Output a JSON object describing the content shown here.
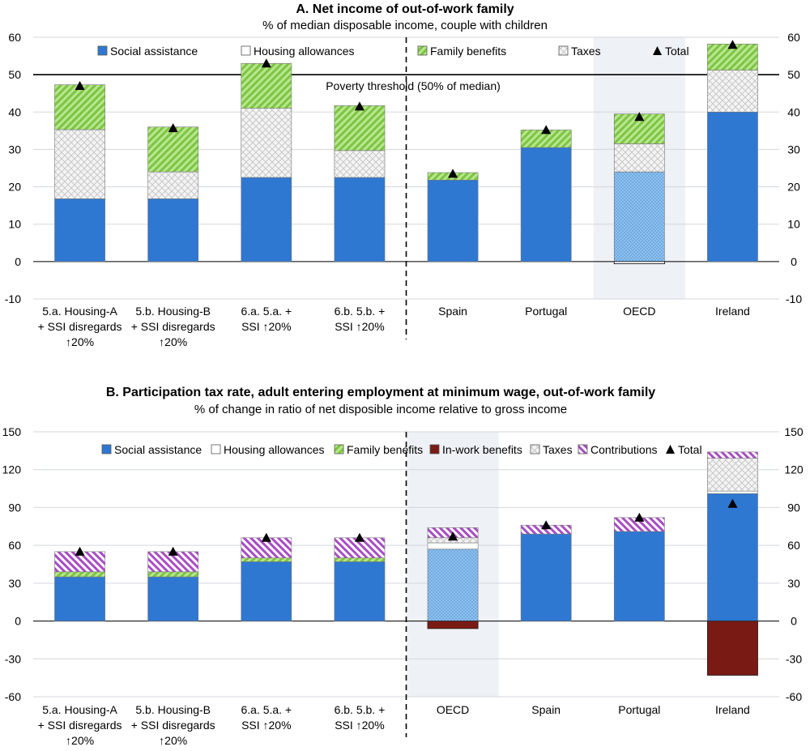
{
  "colors": {
    "social_assistance": "#2e78d2",
    "housing_allowances": "#ffffff",
    "family_benefits": "#90d45a",
    "in_work_benefits": "#7a1a14",
    "taxes": "#dcdcdc",
    "contributions": "#a84cc4",
    "total_marker": "#000000",
    "highlight_band": "#eef1f5"
  },
  "chart_data": [
    {
      "type": "bar",
      "stacked": true,
      "title": "A. Net income of out-of-work family",
      "subtitle": "% of median disposable income, couple with children",
      "categories": [
        "5.a. Housing-A + SSI disregards ↑20%",
        "5.b. Housing-B + SSI disregards ↑20%",
        "6.a. 5.a. + SSI ↑20%",
        "6.b. 5.b. + SSI ↑20%",
        "Spain",
        "Portugal",
        "OECD",
        "Ireland"
      ],
      "category_lines": [
        [
          "5.a. Housing-A",
          "+ SSI disregards",
          "↑20%"
        ],
        [
          "5.b. Housing-B",
          "+ SSI disregards",
          "↑20%"
        ],
        [
          "6.a. 5.a. +",
          "SSI ↑20%"
        ],
        [
          "6.b. 5.b. +",
          "SSI ↑20%"
        ],
        [
          "Spain"
        ],
        [
          "Portugal"
        ],
        [
          "OECD"
        ],
        [
          "Ireland"
        ]
      ],
      "series": [
        {
          "name": "Social assistance",
          "key": "social_assistance",
          "values": [
            16.8,
            16.8,
            22.5,
            22.5,
            21.8,
            30.5,
            24.0,
            40.0
          ]
        },
        {
          "name": "Housing allowances",
          "key": "housing_allowances",
          "values": [
            0,
            0,
            0,
            0,
            0,
            0,
            0,
            0
          ]
        },
        {
          "name": "Family benefits",
          "key": "family_benefits",
          "values": [
            12.0,
            12.0,
            12.0,
            12.0,
            2.0,
            4.7,
            8.0,
            7.0
          ]
        },
        {
          "name": "Taxes",
          "key": "taxes",
          "values": [
            18.5,
            7.2,
            18.5,
            7.2,
            0,
            0,
            7.5,
            11.2
          ]
        }
      ],
      "series_order": [
        "social_assistance",
        "housing_allowances",
        "taxes",
        "family_benefits"
      ],
      "negative": {
        "OECD": -0.6
      },
      "total": {
        "name": "Total",
        "values": [
          47.0,
          35.7,
          53.0,
          41.5,
          23.5,
          35.2,
          38.7,
          58.0
        ]
      },
      "legend_order": [
        "Social assistance",
        "Housing allowances",
        "Family benefits",
        "Taxes",
        "Total"
      ],
      "reference_line": {
        "value": 50,
        "label": "Poverty threshold (50% of median)"
      },
      "highlight_category": "OECD",
      "ylim": [
        -10,
        60
      ],
      "yticks": [
        -10,
        0,
        10,
        20,
        30,
        40,
        50,
        60
      ],
      "legend_placement": "top",
      "divider_after_index": 3
    },
    {
      "type": "bar",
      "stacked": true,
      "title": "B. Participation tax rate, adult entering employment at minimum wage, out-of-work family",
      "subtitle": "% of change in ratio of net disposible income relative to gross income",
      "categories": [
        "5.a. Housing-A + SSI disregards ↑20%",
        "5.b. Housing-B + SSI disregards ↑20%",
        "6.a. 5.a. + SSI ↑20%",
        "6.b. 5.b. + SSI ↑20%",
        "OECD",
        "Spain",
        "Portugal",
        "Ireland"
      ],
      "category_lines": [
        [
          "5.a. Housing-A",
          "+ SSI disregards",
          "↑20%"
        ],
        [
          "5.b. Housing-B",
          "+ SSI disregards",
          "↑20%"
        ],
        [
          "6.a. 5.a. +",
          "SSI ↑20%"
        ],
        [
          "6.b. 5.b. +",
          "SSI ↑20%"
        ],
        [
          "OECD"
        ],
        [
          "Spain"
        ],
        [
          "Portugal"
        ],
        [
          "Ireland"
        ]
      ],
      "series": [
        {
          "name": "Social assistance",
          "key": "social_assistance",
          "values": [
            35,
            35,
            47,
            47,
            57,
            69,
            71,
            101
          ]
        },
        {
          "name": "Housing allowances",
          "key": "housing_allowances",
          "values": [
            0,
            0,
            0,
            0,
            5,
            0,
            0,
            2
          ]
        },
        {
          "name": "Family benefits",
          "key": "family_benefits",
          "values": [
            4,
            4,
            3,
            3,
            0,
            0,
            0,
            0
          ]
        },
        {
          "name": "In-work benefits",
          "key": "in_work_benefits",
          "values": [
            0,
            0,
            0,
            0,
            -6,
            0,
            0,
            -43
          ]
        },
        {
          "name": "Taxes",
          "key": "taxes",
          "values": [
            0,
            0,
            0,
            0,
            4,
            0,
            0,
            26
          ]
        },
        {
          "name": "Contributions",
          "key": "contributions",
          "values": [
            16,
            16,
            16,
            16,
            8,
            7,
            11,
            5
          ]
        }
      ],
      "series_order": [
        "social_assistance",
        "housing_allowances",
        "family_benefits",
        "taxes",
        "contributions"
      ],
      "total": {
        "name": "Total",
        "values": [
          55,
          55,
          66,
          66,
          67,
          76,
          82,
          93
        ]
      },
      "legend_order": [
        "Social assistance",
        "Housing allowances",
        "Family benefits",
        "In-work benefits",
        "Taxes",
        "Contributions",
        "Total"
      ],
      "highlight_category": "OECD",
      "ylim": [
        -60,
        150
      ],
      "yticks": [
        -60,
        -30,
        0,
        30,
        60,
        90,
        120,
        150
      ],
      "legend_placement": "top",
      "divider_after_index": 3
    }
  ]
}
